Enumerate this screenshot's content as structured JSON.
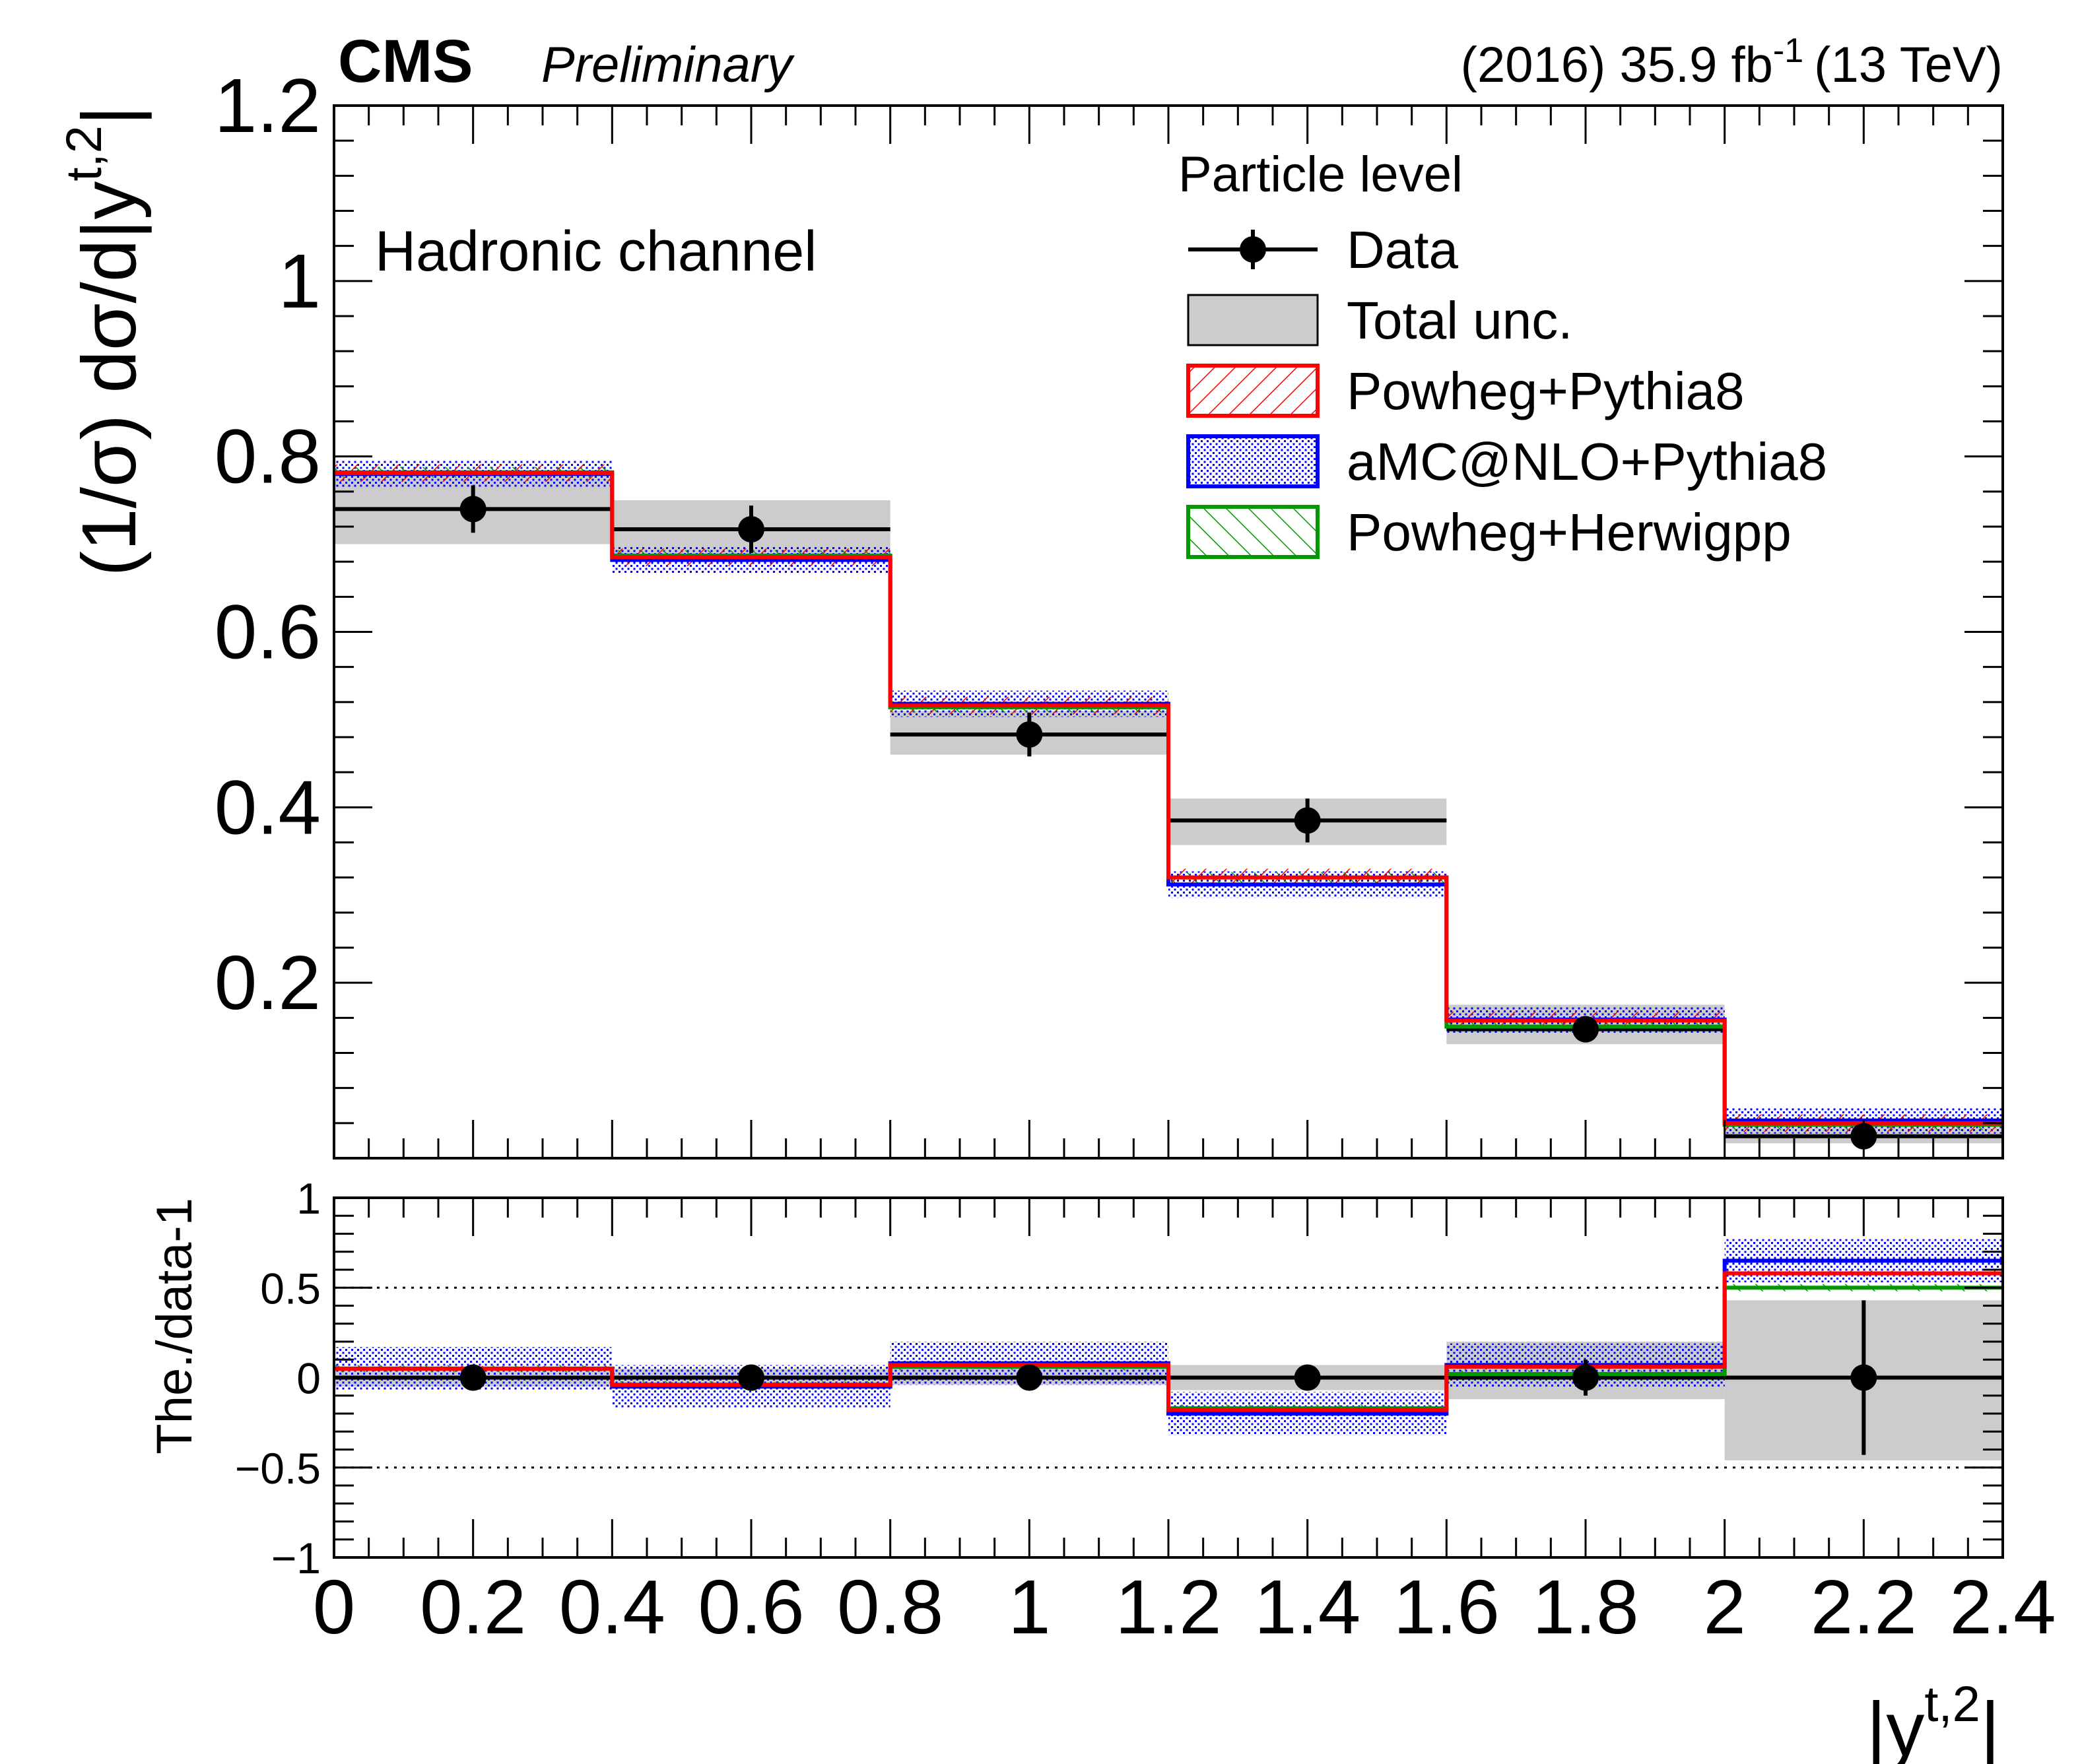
{
  "header": {
    "experiment": "CMS",
    "status": "Preliminary",
    "lumi_prefix": "(2016) 35.9 fb",
    "lumi_sup": "-1",
    "lumi_suffix": "(13 TeV)"
  },
  "colors": {
    "data": "#000000",
    "total_unc": "#cccccc",
    "powheg_pythia8": "#ff0000",
    "amcatnlo_pythia8": "#0000ff",
    "powheg_herwigpp": "#009900"
  },
  "chart_data": [
    {
      "type": "line",
      "panel": "main",
      "title": "Hadronic channel",
      "xlabel": "|y^{t,2}|",
      "ylabel": "(1/σ) dσ/d|y^{t,2}|",
      "xlim": [
        0,
        2.4
      ],
      "ylim": [
        0,
        1.2
      ],
      "yticks": [
        "0.2",
        "0.4",
        "0.6",
        "0.8",
        "1",
        "1.2"
      ],
      "bin_edges": [
        0,
        0.4,
        0.8,
        1.2,
        1.6,
        2.0,
        2.4
      ],
      "legend_header": "Particle level",
      "series": [
        {
          "name": "Data",
          "kind": "points",
          "values": [
            0.74,
            0.717,
            0.483,
            0.385,
            0.147,
            0.025
          ],
          "errors": [
            0.027,
            0.027,
            0.025,
            0.025,
            0.015,
            0.013
          ],
          "unc_low": [
            0.7,
            0.685,
            0.46,
            0.357,
            0.13,
            0.017
          ],
          "unc_high": [
            0.781,
            0.75,
            0.51,
            0.41,
            0.175,
            0.035
          ]
        },
        {
          "name": "Total unc.",
          "kind": "band"
        },
        {
          "name": "Powheg+Pythia8",
          "kind": "hist",
          "values": [
            0.781,
            0.685,
            0.516,
            0.32,
            0.157,
            0.04
          ],
          "band": 0.01
        },
        {
          "name": "aMC@NLO+Pythia8",
          "kind": "hist",
          "values": [
            0.78,
            0.682,
            0.518,
            0.312,
            0.158,
            0.043
          ],
          "band": 0.015
        },
        {
          "name": "Powheg+Herwigpp",
          "kind": "hist",
          "values": [
            0.782,
            0.687,
            0.514,
            0.32,
            0.15,
            0.038
          ],
          "band": 0.006
        }
      ]
    },
    {
      "type": "line",
      "panel": "ratio",
      "ylabel": "The./data-1",
      "xlabel": "|y^{t,2}|",
      "xlim": [
        0,
        2.4
      ],
      "ylim": [
        -1,
        1
      ],
      "yticks": [
        "−1",
        "−0.5",
        "0",
        "0.5",
        "1"
      ],
      "xticks": [
        "0",
        "0.2",
        "0.4",
        "0.6",
        "0.8",
        "1",
        "1.2",
        "1.4",
        "1.6",
        "1.8",
        "2",
        "2.2",
        "2.4"
      ],
      "reference_lines": [
        0.5,
        -0.5
      ],
      "bin_edges": [
        0,
        0.4,
        0.8,
        1.2,
        1.6,
        2.0,
        2.4
      ],
      "series": [
        {
          "name": "Data",
          "kind": "points",
          "values": [
            0,
            0,
            0,
            0,
            0,
            0
          ],
          "errors": [
            0.04,
            0.04,
            0.05,
            0.06,
            0.1,
            0.43
          ],
          "unc_low": [
            -0.05,
            -0.05,
            -0.04,
            -0.07,
            -0.12,
            -0.46
          ],
          "unc_high": [
            0.05,
            0.05,
            0.05,
            0.07,
            0.2,
            0.43
          ]
        },
        {
          "name": "Powheg+Pythia8",
          "kind": "hist",
          "values": [
            0.05,
            -0.04,
            0.07,
            -0.18,
            0.06,
            0.58
          ],
          "band": 0.015
        },
        {
          "name": "aMC@NLO+Pythia8",
          "kind": "hist",
          "values": [
            0.05,
            -0.05,
            0.08,
            -0.2,
            0.07,
            0.65
          ],
          "band": 0.12
        },
        {
          "name": "Powheg+Herwigpp",
          "kind": "hist",
          "values": [
            0.05,
            -0.04,
            0.06,
            -0.17,
            0.02,
            0.5
          ],
          "band": 0.02
        }
      ]
    }
  ]
}
